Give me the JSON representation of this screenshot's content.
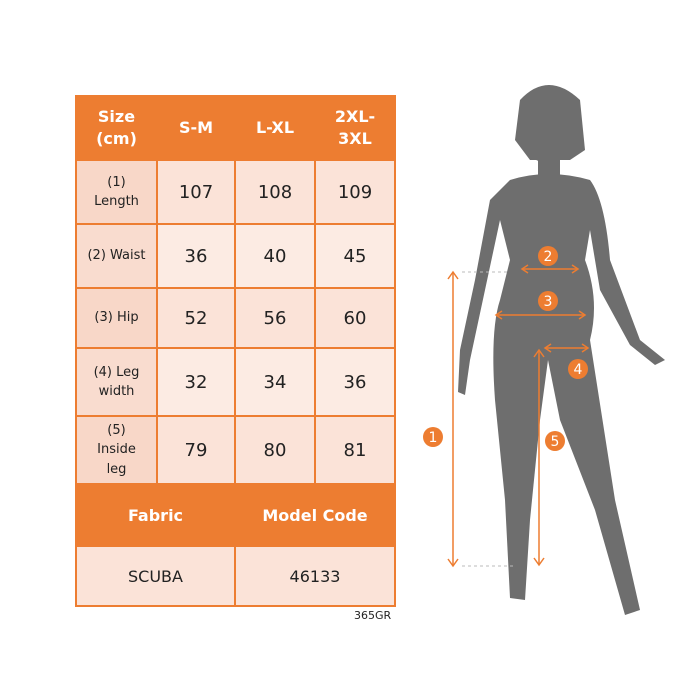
{
  "table": {
    "headers": [
      "Size\n(cm)",
      "S-M",
      "L-XL",
      "2XL-\n3XL"
    ],
    "rows": [
      {
        "label": "(1)\nLength",
        "values": [
          "107",
          "108",
          "109"
        ]
      },
      {
        "label": "(2) Waist",
        "values": [
          "36",
          "40",
          "45"
        ]
      },
      {
        "label": "(3) Hip",
        "values": [
          "52",
          "56",
          "60"
        ]
      },
      {
        "label": "(4) Leg\nwidth",
        "values": [
          "32",
          "34",
          "36"
        ]
      },
      {
        "label": "(5)\nInside\nleg",
        "values": [
          "79",
          "80",
          "81"
        ]
      }
    ],
    "fabric_header": "Fabric",
    "model_code_header": "Model Code",
    "fabric": "SCUBA",
    "model_code": "46133"
  },
  "product_code": "365GR",
  "markers": [
    "1",
    "2",
    "3",
    "4",
    "5"
  ],
  "colors": {
    "accent": "#ED7D31",
    "cell": "#FBE3D8",
    "silhouette": "#6E6E6E"
  }
}
